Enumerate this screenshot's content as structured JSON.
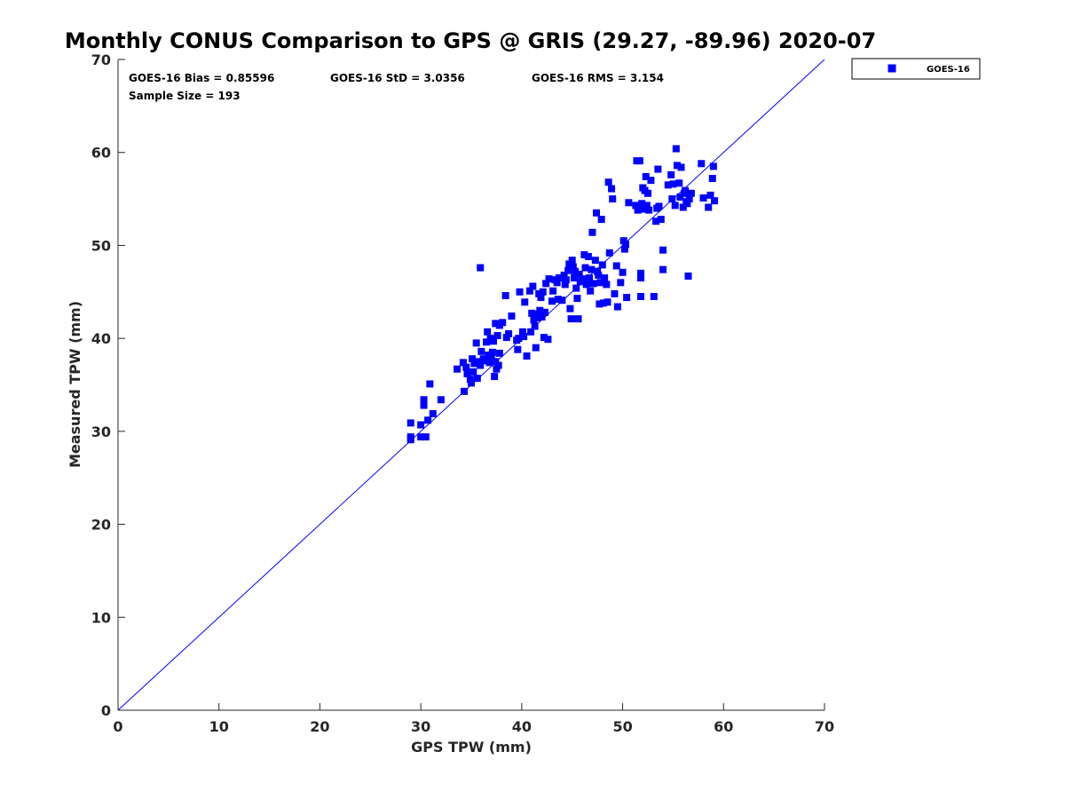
{
  "chart_data": {
    "type": "scatter",
    "title": "Monthly CONUS Comparison to GPS @ GRIS (29.27, -89.96) 2020-07",
    "xlabel": "GPS TPW (mm)",
    "ylabel": "Measured TPW (mm)",
    "xlim": [
      0,
      70
    ],
    "ylim": [
      0,
      70
    ],
    "xticks": [
      0,
      10,
      20,
      30,
      40,
      50,
      60,
      70
    ],
    "yticks": [
      0,
      10,
      20,
      30,
      40,
      50,
      60,
      70
    ],
    "grid": false,
    "legend_position": "top-right-outside",
    "stats": {
      "bias": "GOES-16 Bias = 0.85596",
      "std": "GOES-16 StD = 3.0356",
      "rms": "GOES-16 RMS = 3.154",
      "sample_size": "Sample Size = 193"
    },
    "reference_line": {
      "from": [
        0,
        0
      ],
      "to": [
        70,
        70
      ],
      "color": "#0000ff"
    },
    "series": [
      {
        "name": "GOES-16",
        "color": "#0000ff",
        "marker": "square",
        "points": [
          [
            29.0,
            30.9
          ],
          [
            29.0,
            29.4
          ],
          [
            29.0,
            29.1
          ],
          [
            30.0,
            30.7
          ],
          [
            30.0,
            29.4
          ],
          [
            30.3,
            33.4
          ],
          [
            30.3,
            32.8
          ],
          [
            30.5,
            29.4
          ],
          [
            30.7,
            31.2
          ],
          [
            30.9,
            35.1
          ],
          [
            31.2,
            31.9
          ],
          [
            32.0,
            33.4
          ],
          [
            33.6,
            36.7
          ],
          [
            34.2,
            37.4
          ],
          [
            34.3,
            34.3
          ],
          [
            34.5,
            36.9
          ],
          [
            34.6,
            36.2
          ],
          [
            34.9,
            35.6
          ],
          [
            35.0,
            35.2
          ],
          [
            35.1,
            37.8
          ],
          [
            35.3,
            37.3
          ],
          [
            35.5,
            39.5
          ],
          [
            35.6,
            35.7
          ],
          [
            35.7,
            37.5
          ],
          [
            35.9,
            37.1
          ],
          [
            35.9,
            47.6
          ],
          [
            36.0,
            38.6
          ],
          [
            36.2,
            37.8
          ],
          [
            36.4,
            37.6
          ],
          [
            36.5,
            39.6
          ],
          [
            36.6,
            40.7
          ],
          [
            36.7,
            38.2
          ],
          [
            36.8,
            37.4
          ],
          [
            36.9,
            40.0
          ],
          [
            37.1,
            38.5
          ],
          [
            37.2,
            39.7
          ],
          [
            37.3,
            35.9
          ],
          [
            37.4,
            41.6
          ],
          [
            37.4,
            37.5
          ],
          [
            37.5,
            36.7
          ],
          [
            37.6,
            40.3
          ],
          [
            37.7,
            37.1
          ],
          [
            37.8,
            41.4
          ],
          [
            37.8,
            38.4
          ],
          [
            38.1,
            41.7
          ],
          [
            38.4,
            44.6
          ],
          [
            38.5,
            40.1
          ],
          [
            38.7,
            40.5
          ],
          [
            39.0,
            42.4
          ],
          [
            39.5,
            39.8
          ],
          [
            39.6,
            38.8
          ],
          [
            39.8,
            45.0
          ],
          [
            40.1,
            40.7
          ],
          [
            40.2,
            40.2
          ],
          [
            40.3,
            43.9
          ],
          [
            40.5,
            38.1
          ],
          [
            40.8,
            45.1
          ],
          [
            40.9,
            40.7
          ],
          [
            41.0,
            42.7
          ],
          [
            41.1,
            45.6
          ],
          [
            41.2,
            42.0
          ],
          [
            41.3,
            41.3
          ],
          [
            41.4,
            39.0
          ],
          [
            41.5,
            42.2
          ],
          [
            41.6,
            42.6
          ],
          [
            41.7,
            44.8
          ],
          [
            41.8,
            43.0
          ],
          [
            41.9,
            44.4
          ],
          [
            42.0,
            42.3
          ],
          [
            42.1,
            45.0
          ],
          [
            42.2,
            40.1
          ],
          [
            42.3,
            42.8
          ],
          [
            42.4,
            45.9
          ],
          [
            42.6,
            39.9
          ],
          [
            42.7,
            46.4
          ],
          [
            43.0,
            44.0
          ],
          [
            43.1,
            45.1
          ],
          [
            43.3,
            46.3
          ],
          [
            43.5,
            46.0
          ],
          [
            43.7,
            46.5
          ],
          [
            44.0,
            44.1
          ],
          [
            44.2,
            46.8
          ],
          [
            44.4,
            46.3
          ],
          [
            44.6,
            47.3
          ],
          [
            44.7,
            48.0
          ],
          [
            44.8,
            43.2
          ],
          [
            44.9,
            42.1
          ],
          [
            45.0,
            48.4
          ],
          [
            45.1,
            47.7
          ],
          [
            45.2,
            46.5
          ],
          [
            45.3,
            47.2
          ],
          [
            45.4,
            45.4
          ],
          [
            45.5,
            44.3
          ],
          [
            45.6,
            42.1
          ],
          [
            45.7,
            46.9
          ],
          [
            45.8,
            46.1
          ],
          [
            46.0,
            46.4
          ],
          [
            46.2,
            49.0
          ],
          [
            46.3,
            47.6
          ],
          [
            46.4,
            45.8
          ],
          [
            46.6,
            48.8
          ],
          [
            46.7,
            46.5
          ],
          [
            46.8,
            45.1
          ],
          [
            46.9,
            47.4
          ],
          [
            47.0,
            51.4
          ],
          [
            47.1,
            45.9
          ],
          [
            47.3,
            48.4
          ],
          [
            47.4,
            53.5
          ],
          [
            47.5,
            47.2
          ],
          [
            47.6,
            46.8
          ],
          [
            47.7,
            43.7
          ],
          [
            47.8,
            46.0
          ],
          [
            47.9,
            52.8
          ],
          [
            48.0,
            47.9
          ],
          [
            48.1,
            43.8
          ],
          [
            48.2,
            46.5
          ],
          [
            48.4,
            45.8
          ],
          [
            48.5,
            43.9
          ],
          [
            48.6,
            56.8
          ],
          [
            48.9,
            56.1
          ],
          [
            49.0,
            55.0
          ],
          [
            49.2,
            44.8
          ],
          [
            49.4,
            47.8
          ],
          [
            49.5,
            43.4
          ],
          [
            49.8,
            46.0
          ],
          [
            50.0,
            47.1
          ],
          [
            50.1,
            50.5
          ],
          [
            50.2,
            49.6
          ],
          [
            50.4,
            44.4
          ],
          [
            50.6,
            54.6
          ],
          [
            51.3,
            54.3
          ],
          [
            51.4,
            59.1
          ],
          [
            51.5,
            53.8
          ],
          [
            51.7,
            59.1
          ],
          [
            51.8,
            47.0
          ],
          [
            51.8,
            44.5
          ],
          [
            51.8,
            46.5
          ],
          [
            51.9,
            54.5
          ],
          [
            52.0,
            56.2
          ],
          [
            52.1,
            53.9
          ],
          [
            52.2,
            55.9
          ],
          [
            52.3,
            57.4
          ],
          [
            52.4,
            54.3
          ],
          [
            52.5,
            55.6
          ],
          [
            52.6,
            53.8
          ],
          [
            52.8,
            57.0
          ],
          [
            53.1,
            44.5
          ],
          [
            53.3,
            52.6
          ],
          [
            53.4,
            54.0
          ],
          [
            53.5,
            58.2
          ],
          [
            53.6,
            54.2
          ],
          [
            53.8,
            52.8
          ],
          [
            54.0,
            49.5
          ],
          [
            54.0,
            47.4
          ],
          [
            54.5,
            56.5
          ],
          [
            54.8,
            57.6
          ],
          [
            54.9,
            55.0
          ],
          [
            55.0,
            56.6
          ],
          [
            55.2,
            54.3
          ],
          [
            55.3,
            60.4
          ],
          [
            55.4,
            58.6
          ],
          [
            55.6,
            56.7
          ],
          [
            55.7,
            55.2
          ],
          [
            55.8,
            58.4
          ],
          [
            56.0,
            54.1
          ],
          [
            56.1,
            55.6
          ],
          [
            56.2,
            55.9
          ],
          [
            56.3,
            54.7
          ],
          [
            56.4,
            54.5
          ],
          [
            56.5,
            46.7
          ],
          [
            56.6,
            55.0
          ],
          [
            56.8,
            55.6
          ],
          [
            57.8,
            58.8
          ],
          [
            58.0,
            55.1
          ],
          [
            58.5,
            54.1
          ],
          [
            58.7,
            55.4
          ],
          [
            58.9,
            57.2
          ],
          [
            59.1,
            54.8
          ],
          [
            59.0,
            58.5
          ],
          [
            46.5,
            46.0
          ],
          [
            43.6,
            44.2
          ],
          [
            41.9,
            42.6
          ],
          [
            39.7,
            40.0
          ],
          [
            37.0,
            37.9
          ],
          [
            35.2,
            36.4
          ],
          [
            44.3,
            45.8
          ],
          [
            48.7,
            49.2
          ],
          [
            50.3,
            50.1
          ]
        ]
      }
    ]
  }
}
